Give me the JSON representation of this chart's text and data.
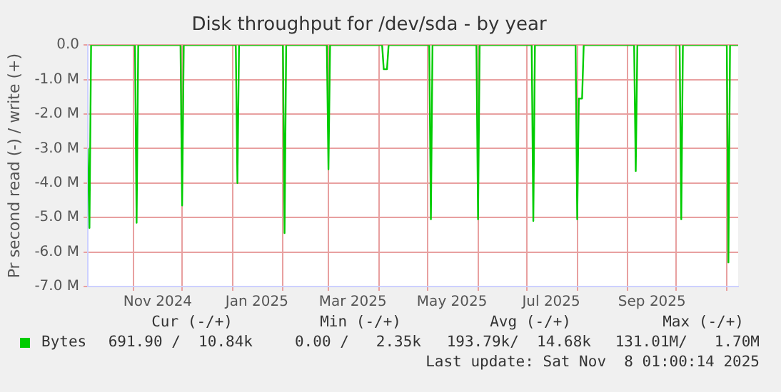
{
  "chart_data": {
    "type": "line",
    "title": "Disk throughput for /dev/sda - by year",
    "ylabel": "Pr second read (-) / write (+)",
    "x": [
      "2024-10-04",
      "2024-10-05",
      "2024-10-06",
      "2024-11-02",
      "2024-11-03",
      "2024-11-04",
      "2024-11-30",
      "2024-12-01",
      "2024-12-02",
      "2025-01-03",
      "2025-01-04",
      "2025-01-05",
      "2025-02-01",
      "2025-02-02",
      "2025-02-03",
      "2025-02-28",
      "2025-03-01",
      "2025-03-02",
      "2025-04-03",
      "2025-04-04",
      "2025-04-06",
      "2025-04-07",
      "2025-05-02",
      "2025-05-03",
      "2025-05-04",
      "2025-05-31",
      "2025-06-01",
      "2025-06-02",
      "2025-07-04",
      "2025-07-05",
      "2025-07-06",
      "2025-07-31",
      "2025-08-01",
      "2025-08-02",
      "2025-08-04",
      "2025-08-05",
      "2025-09-05",
      "2025-09-06",
      "2025-09-07",
      "2025-10-03",
      "2025-10-04",
      "2025-10-05",
      "2025-11-01",
      "2025-11-02",
      "2025-11-03",
      "2025-11-08"
    ],
    "series": [
      {
        "name": "Bytes",
        "color": "#00cc00",
        "values": [
          -3.0,
          -5.3,
          0,
          0,
          -5.15,
          0,
          0,
          -4.65,
          0,
          0,
          -4.0,
          0,
          0,
          -5.45,
          0,
          0,
          -3.6,
          0,
          0,
          -0.7,
          -0.7,
          0,
          0,
          -5.05,
          0,
          0,
          -5.05,
          0,
          0,
          -5.1,
          0,
          0,
          -5.05,
          -1.55,
          -1.55,
          0,
          0,
          -3.65,
          0,
          0,
          -5.05,
          0,
          0,
          -6.3,
          0,
          0
        ]
      }
    ],
    "xlim": [
      "2024-10-04",
      "2025-11-08"
    ],
    "xticks": [
      {
        "value": "2024-11-01",
        "label": null
      },
      {
        "value": "2024-11-16",
        "label": "Nov 2024"
      },
      {
        "value": "2024-12-01",
        "label": null
      },
      {
        "value": "2025-01-01",
        "label": null
      },
      {
        "value": "2025-01-16",
        "label": "Jan 2025"
      },
      {
        "value": "2025-02-01",
        "label": null
      },
      {
        "value": "2025-03-01",
        "label": null
      },
      {
        "value": "2025-03-16",
        "label": "Mar 2025"
      },
      {
        "value": "2025-04-01",
        "label": null
      },
      {
        "value": "2025-05-01",
        "label": null
      },
      {
        "value": "2025-05-16",
        "label": "May 2025"
      },
      {
        "value": "2025-06-01",
        "label": null
      },
      {
        "value": "2025-07-01",
        "label": null
      },
      {
        "value": "2025-07-16",
        "label": "Jul 2025"
      },
      {
        "value": "2025-08-01",
        "label": null
      },
      {
        "value": "2025-09-01",
        "label": null
      },
      {
        "value": "2025-09-16",
        "label": "Sep 2025"
      },
      {
        "value": "2025-10-01",
        "label": null
      },
      {
        "value": "2025-11-01",
        "label": null
      }
    ],
    "ylim": [
      -7,
      0
    ],
    "yticks": [
      {
        "value": -7,
        "label": "-7.0 M"
      },
      {
        "value": -6,
        "label": "-6.0 M"
      },
      {
        "value": -5,
        "label": "-5.0 M"
      },
      {
        "value": -4,
        "label": "-4.0 M"
      },
      {
        "value": -3,
        "label": "-3.0 M"
      },
      {
        "value": -2,
        "label": "-2.0 M"
      },
      {
        "value": -1,
        "label": "-1.0 M"
      },
      {
        "value": 0,
        "label": "0.0"
      }
    ],
    "grid": true,
    "legend": "bottom left",
    "marker": "none",
    "line_style": "solid",
    "annotations": [
      "Cur (-/+)",
      "Min (-/+)",
      "Avg (-/+)",
      "Max (-/+)",
      "691.90 /  10.84k",
      "0.00 /   2.35k",
      "193.79k/  14.68k",
      "131.01M/   1.70M",
      "Last update: Sat Nov  8 01:00:14 2025"
    ]
  }
}
